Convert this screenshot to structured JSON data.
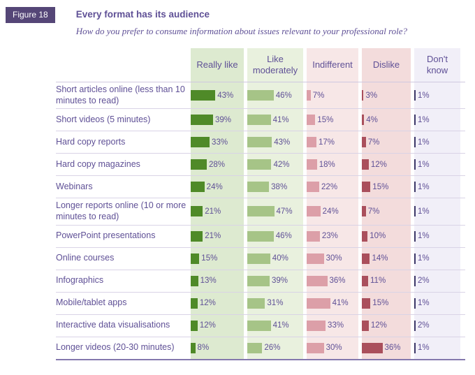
{
  "figure_label": "Figure 18",
  "title": "Every format has its audience",
  "subtitle": "How do you prefer to consume information about issues relevant to your professional role?",
  "colors": {
    "text_purple": "#5f5096",
    "badge_bg": "#554677",
    "row_divider": "#d9d3e6",
    "bottom_rule": "#8478ad"
  },
  "chart_data": {
    "type": "bar",
    "orientation": "horizontal",
    "unit": "%",
    "columns": [
      {
        "label": "Really like",
        "bar_color": "#4f8a28",
        "bg_color": "#ddead0"
      },
      {
        "label": "Like moderately",
        "bar_color": "#a6c487",
        "bg_color": "#e9f1de"
      },
      {
        "label": "Indifferent",
        "bar_color": "#dc9fa8",
        "bg_color": "#f7e7e7"
      },
      {
        "label": "Dislike",
        "bar_color": "#aa4f5c",
        "bg_color": "#f3dcdc"
      },
      {
        "label": "Don't know",
        "bar_color": "#3c3768",
        "bg_color": "#f1eff8"
      }
    ],
    "rows": [
      {
        "label": "Short articles online (less than 10 minutes to read)",
        "values": [
          43,
          46,
          7,
          3,
          1
        ]
      },
      {
        "label": "Short videos (5 minutes)",
        "values": [
          39,
          41,
          15,
          4,
          1
        ]
      },
      {
        "label": "Hard copy reports",
        "values": [
          33,
          43,
          17,
          7,
          1
        ]
      },
      {
        "label": "Hard copy magazines",
        "values": [
          28,
          42,
          18,
          12,
          1
        ]
      },
      {
        "label": "Webinars",
        "values": [
          24,
          38,
          22,
          15,
          1
        ]
      },
      {
        "label": "Longer reports online (10 or more minutes to read)",
        "values": [
          21,
          47,
          24,
          7,
          1
        ]
      },
      {
        "label": "PowerPoint presentations",
        "values": [
          21,
          46,
          23,
          10,
          1
        ]
      },
      {
        "label": "Online courses",
        "values": [
          15,
          40,
          30,
          14,
          1
        ]
      },
      {
        "label": "Infographics",
        "values": [
          13,
          39,
          36,
          11,
          2
        ]
      },
      {
        "label": "Mobile/tablet apps",
        "values": [
          12,
          31,
          41,
          15,
          1
        ]
      },
      {
        "label": "Interactive data visualisations",
        "values": [
          12,
          41,
          33,
          12,
          2
        ]
      },
      {
        "label": "Longer videos (20-30 minutes)",
        "values": [
          8,
          26,
          30,
          36,
          1
        ]
      }
    ]
  }
}
